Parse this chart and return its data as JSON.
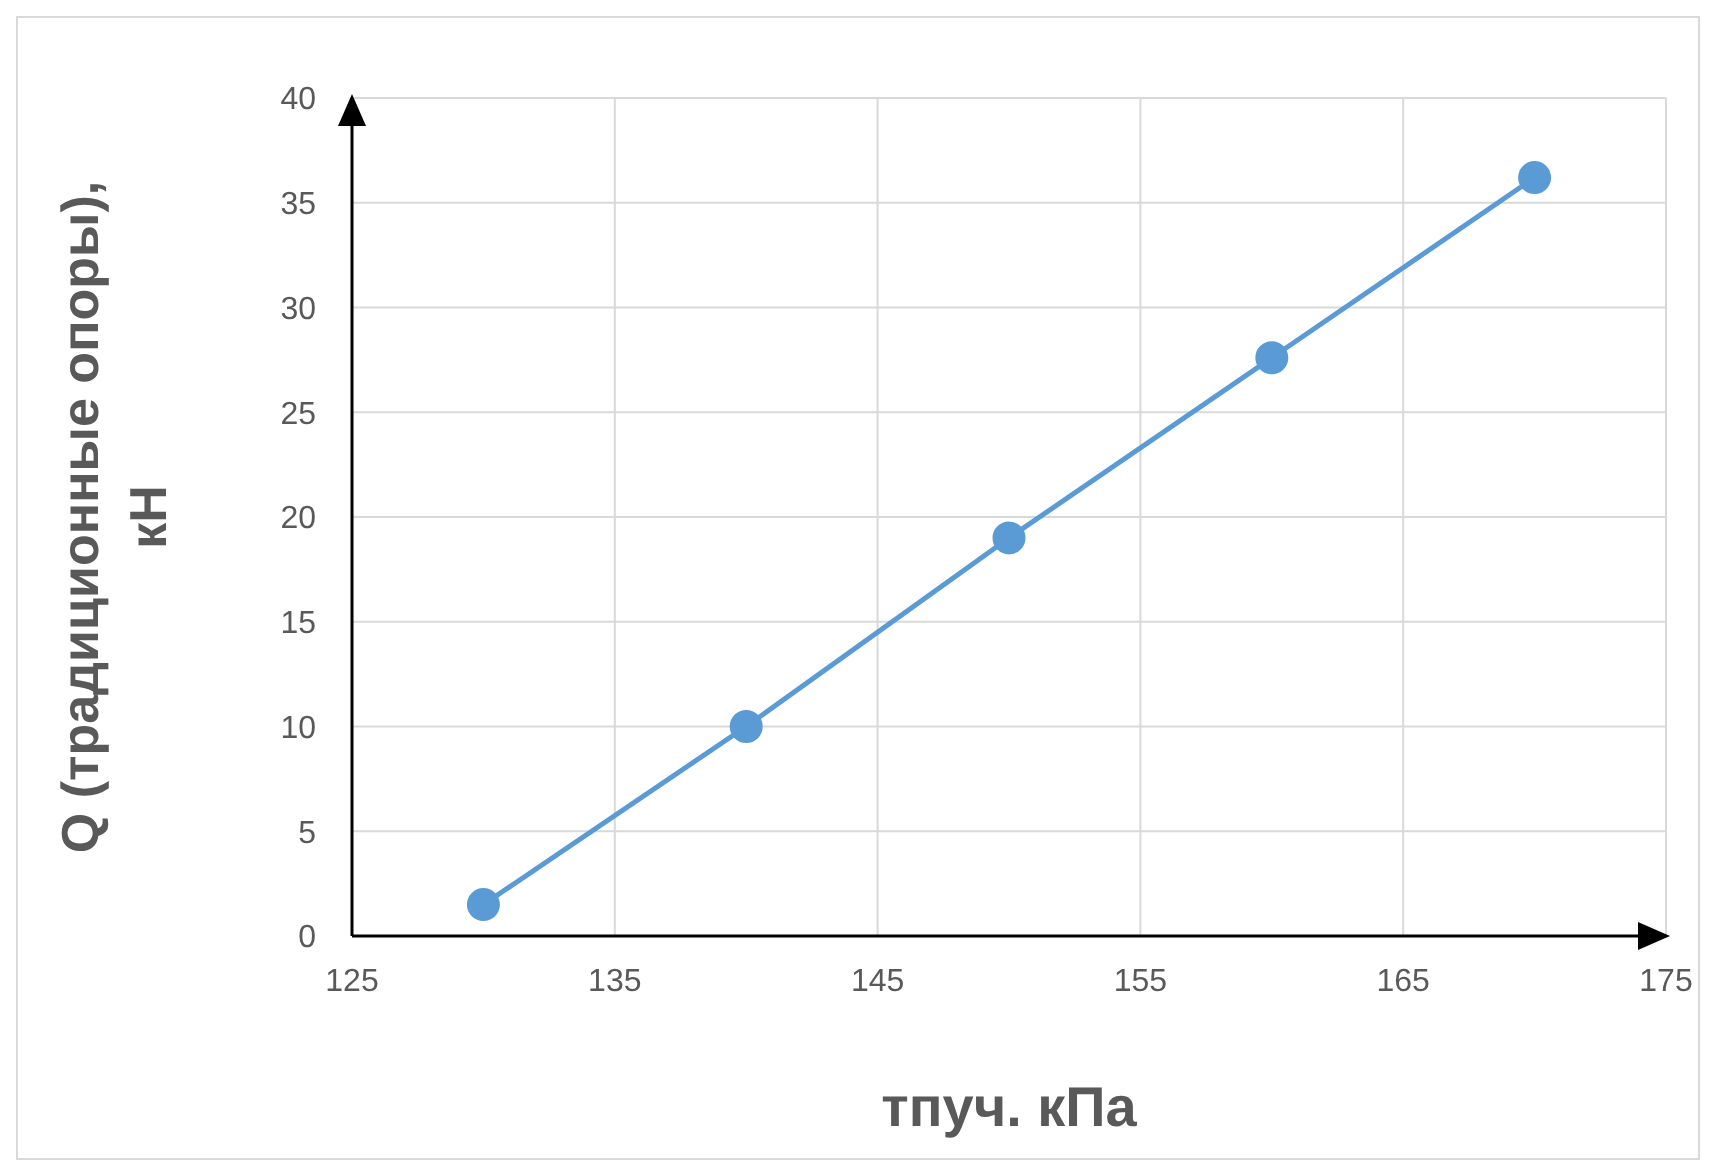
{
  "chart_data": {
    "type": "line",
    "xlabel": "тпуч. кПа",
    "ylabel": "Q (традиционные опоры), кН",
    "x": [
      130,
      140,
      150,
      160,
      170
    ],
    "series": [
      {
        "color": "#5b9bd5",
        "values": [
          1.5,
          10,
          19,
          27.6,
          36.2
        ]
      }
    ],
    "xlim": [
      125,
      175
    ],
    "xticks": [
      125,
      135,
      145,
      155,
      165,
      175
    ],
    "ylim": [
      0,
      40
    ],
    "yticks": [
      0,
      5,
      10,
      15,
      20,
      25,
      30,
      35,
      40
    ],
    "grid": true,
    "marker": "circle",
    "line_style": "solid",
    "legend": false
  }
}
